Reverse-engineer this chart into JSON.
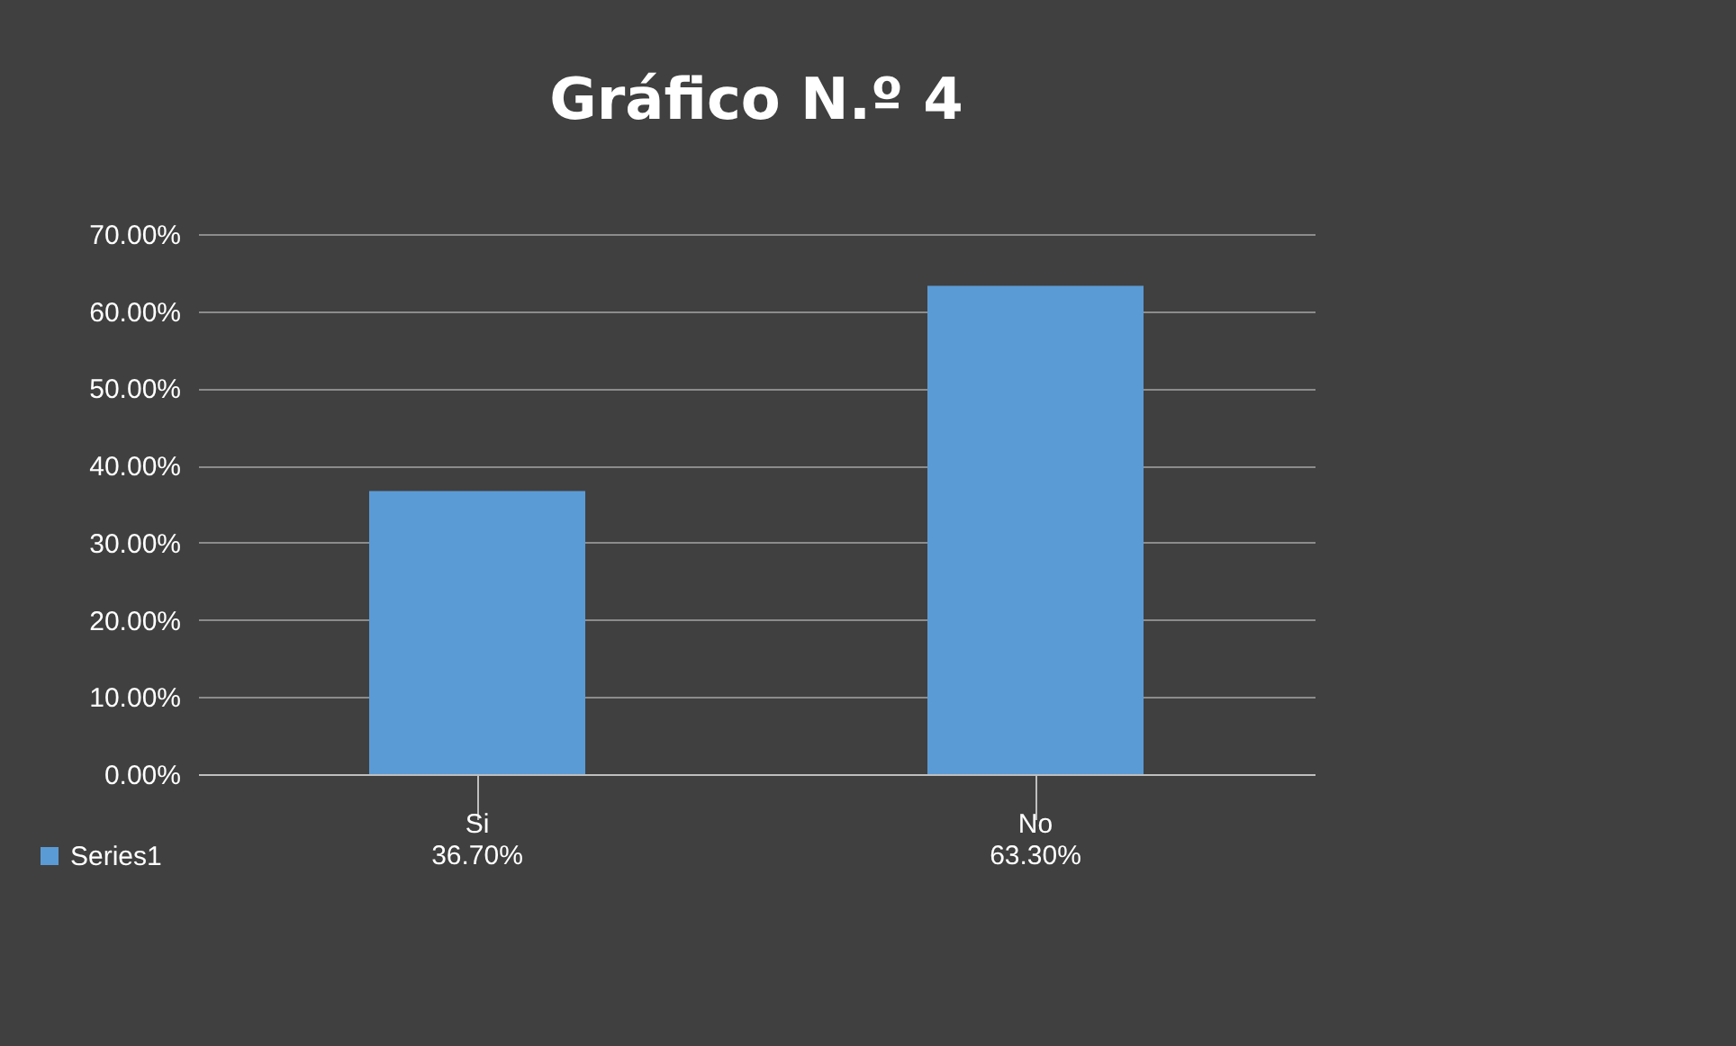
{
  "chart_data": {
    "type": "bar",
    "title": "Gráfico N.º 4",
    "categories": [
      "Si",
      "No"
    ],
    "series": [
      {
        "name": "Series1",
        "color": "#5b9bd5",
        "values": [
          36.7,
          63.3
        ]
      }
    ],
    "value_labels": [
      "36.70%",
      "63.30%"
    ],
    "ylim": [
      0,
      70
    ],
    "yticks": [
      {
        "value": 0,
        "label": "0.00%"
      },
      {
        "value": 10,
        "label": "10.00%"
      },
      {
        "value": 20,
        "label": "20.00%"
      },
      {
        "value": 30,
        "label": "30.00%"
      },
      {
        "value": 40,
        "label": "40.00%"
      },
      {
        "value": 50,
        "label": "50.00%"
      },
      {
        "value": 60,
        "label": "60.00%"
      },
      {
        "value": 70,
        "label": "70.00%"
      }
    ],
    "grid": "y",
    "legend": "bottom left"
  }
}
